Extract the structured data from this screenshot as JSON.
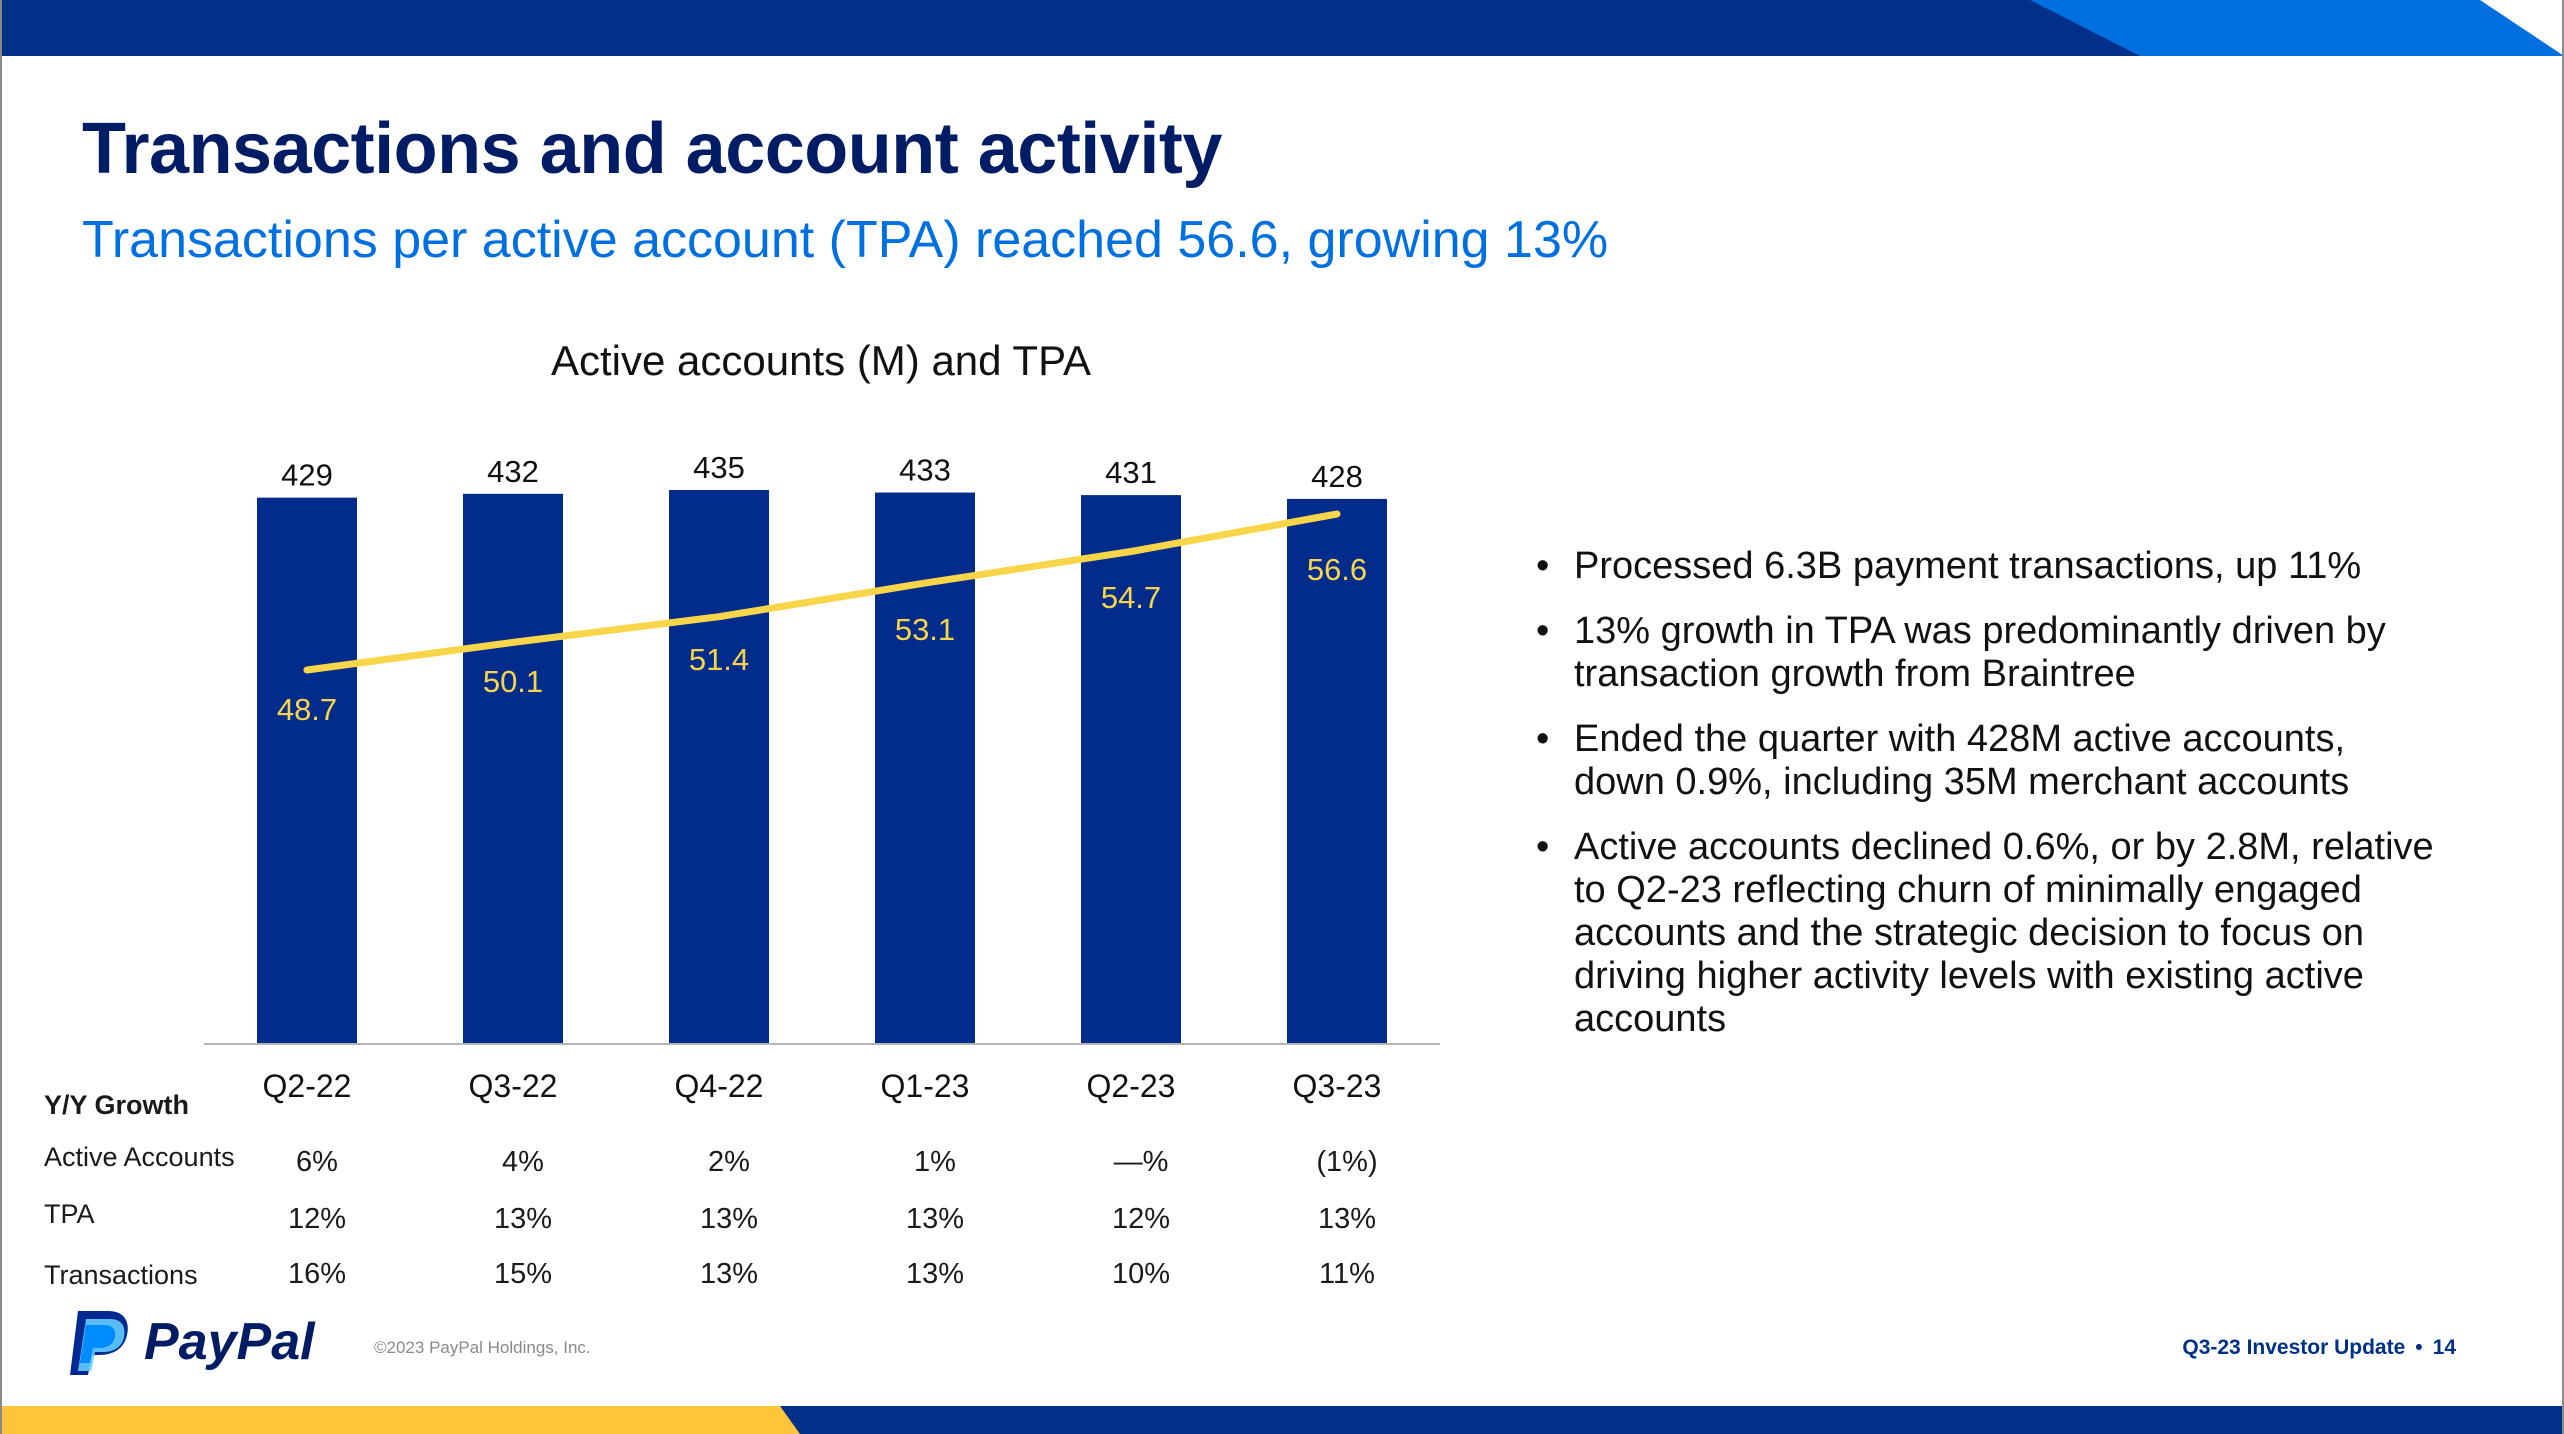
{
  "colors": {
    "navy": "#003087",
    "bar_blue": "#012c8c",
    "accent_blue": "#0070e0",
    "title_navy": "#001c64",
    "yellow": "#ffc439",
    "line_yellow": "#f9d54a"
  },
  "header": {
    "title": "Transactions and account activity",
    "subtitle": "Transactions per active account (TPA) reached 56.6, growing 13%"
  },
  "chart_data": {
    "type": "bar",
    "title": "Active accounts (M) and TPA",
    "categories": [
      "Q2-22",
      "Q3-22",
      "Q4-22",
      "Q1-23",
      "Q2-23",
      "Q3-23"
    ],
    "series": [
      {
        "name": "Active accounts (M)",
        "type": "bar",
        "values": [
          429,
          432,
          435,
          433,
          431,
          428
        ]
      },
      {
        "name": "TPA",
        "type": "line",
        "values": [
          48.7,
          50.1,
          51.4,
          53.1,
          54.7,
          56.6
        ]
      }
    ],
    "xlabel": "",
    "ylabel": "",
    "ylim": [
      0,
      435
    ],
    "tpa_range": [
      48.7,
      56.6
    ],
    "grid": false,
    "value_labels": true
  },
  "growth_table": {
    "heading": "Y/Y Growth",
    "rows": [
      {
        "label": "Active Accounts",
        "values": [
          "6%",
          "4%",
          "2%",
          "1%",
          "—%",
          "(1%)"
        ]
      },
      {
        "label": "TPA",
        "values": [
          "12%",
          "13%",
          "13%",
          "13%",
          "12%",
          "13%"
        ]
      },
      {
        "label": "Transactions",
        "values": [
          "16%",
          "15%",
          "13%",
          "13%",
          "10%",
          "11%"
        ]
      }
    ]
  },
  "bullets": {
    "marker": "•",
    "items": [
      "Processed 6.3B payment transactions, up 11%",
      "13% growth in TPA was predominantly driven by transaction growth from Braintree",
      "Ended the quarter with 428M active accounts, down 0.9%, including 35M merchant accounts",
      "Active accounts declined 0.6%, or by 2.8M, relative to Q2-23 reflecting churn of minimally engaged accounts and the strategic decision to focus on driving higher activity levels with existing active accounts"
    ]
  },
  "footer": {
    "logo_text": "PayPal",
    "copyright": "©2023 PayPal Holdings, Inc.",
    "deck_name": "Q3-23 Investor Update",
    "separator": "•",
    "page_number": "14"
  }
}
